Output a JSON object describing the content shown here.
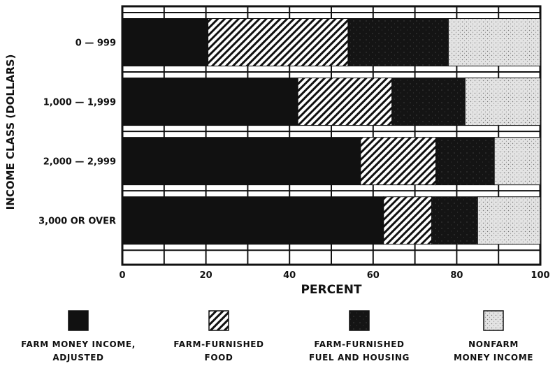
{
  "chart_data": {
    "type": "bar",
    "orientation": "horizontal",
    "stacked": true,
    "categories": [
      "0 — 999",
      "1,000 — 1,999",
      "2,000 — 2,999",
      "3,000  OR OVER"
    ],
    "series": [
      {
        "name": "FARM MONEY INCOME, ADJUSTED",
        "name_lines": [
          "FARM MONEY INCOME,",
          "ADJUSTED"
        ],
        "values": [
          20.5,
          42,
          57,
          62.5
        ],
        "color": "#111111",
        "pattern": "solid"
      },
      {
        "name": "FARM-FURNISHED FOOD",
        "name_lines": [
          "FARM-FURNISHED",
          "FOOD"
        ],
        "values": [
          33.5,
          22.5,
          18,
          11.5
        ],
        "color": "#111111",
        "pattern": "diagonal-hatch"
      },
      {
        "name": "FARM-FURNISHED FUEL AND HOUSING",
        "name_lines": [
          "FARM-FURNISHED",
          "FUEL AND HOUSING"
        ],
        "values": [
          24,
          17.5,
          14,
          11
        ],
        "color": "#151515",
        "pattern": "dark-stipple"
      },
      {
        "name": "NONFARM MONEY INCOME",
        "name_lines": [
          "NONFARM",
          "MONEY INCOME"
        ],
        "values": [
          22,
          18,
          11,
          15
        ],
        "color": "#dcdcdc",
        "pattern": "light-stipple"
      }
    ],
    "xlabel": "PERCENT",
    "ylabel": "INCOME CLASS (DOLLARS)",
    "xlim": [
      0,
      100
    ],
    "xticks": [
      0,
      20,
      40,
      60,
      80,
      100
    ],
    "grid": true,
    "legend": "bottom"
  }
}
